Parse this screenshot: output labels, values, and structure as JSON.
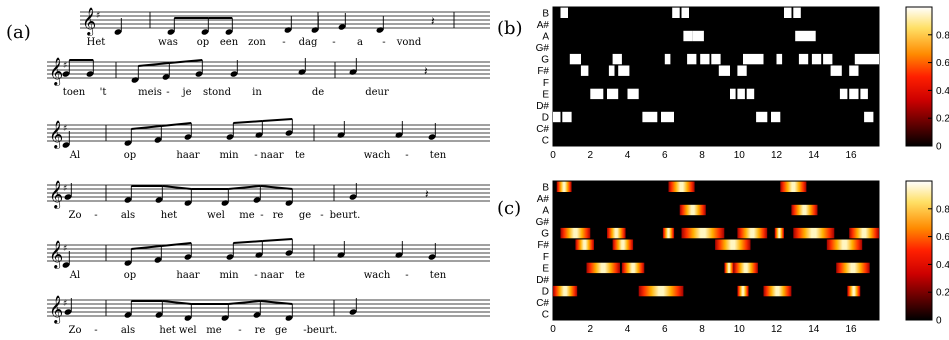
{
  "panel_labels": {
    "a": "(a)",
    "b": "(b)",
    "c": "(c)"
  },
  "sheet_music": {
    "staves": [
      {
        "syllables": [
          "Het",
          "was",
          "op",
          "een",
          "zon",
          "-",
          "dag",
          "-",
          "a",
          "-",
          "vond"
        ]
      },
      {
        "syllables": [
          "toen",
          "'t",
          "meis",
          "-",
          "je",
          "stond",
          "in",
          "de",
          "deur"
        ]
      },
      {
        "syllables": [
          "Al",
          "op",
          "haar",
          "min",
          "-",
          "naar",
          "te",
          "wach",
          "-",
          "ten"
        ]
      },
      {
        "syllables": [
          "Zo",
          "-",
          "als",
          "het",
          "wel",
          "me",
          "-",
          "re",
          "ge",
          "-",
          "beurt."
        ]
      },
      {
        "syllables": [
          "Al",
          "op",
          "haar",
          "min",
          "-",
          "naar",
          "te",
          "wach",
          "-",
          "ten"
        ]
      },
      {
        "syllables": [
          "Zo",
          "-",
          "als",
          "het wel",
          "me",
          "-",
          "re",
          "ge",
          "-",
          "beurt."
        ]
      }
    ]
  },
  "chart_data": [
    {
      "type": "heatmap",
      "panel": "(b)",
      "y_categories": [
        "B",
        "A#",
        "A",
        "G#",
        "G",
        "F#",
        "F",
        "E",
        "D#",
        "D",
        "C#",
        "C"
      ],
      "x_ticks": [
        "0",
        "2",
        "4",
        "6",
        "8",
        "10",
        "12",
        "14",
        "16"
      ],
      "xlim": [
        0,
        17.5
      ],
      "colorbar": {
        "min": 0,
        "max": 1,
        "ticks": [
          "0",
          "0.2",
          "0.4",
          "0.6",
          "0.8"
        ],
        "colormap": "hot"
      },
      "cells": [
        {
          "note": "B",
          "start": 0.4,
          "end": 0.8,
          "value": 1
        },
        {
          "note": "B",
          "start": 6.4,
          "end": 6.8,
          "value": 1
        },
        {
          "note": "B",
          "start": 6.9,
          "end": 7.3,
          "value": 1
        },
        {
          "note": "B",
          "start": 12.4,
          "end": 12.8,
          "value": 1
        },
        {
          "note": "B",
          "start": 12.9,
          "end": 13.3,
          "value": 1
        },
        {
          "note": "A",
          "start": 7.0,
          "end": 7.5,
          "value": 1
        },
        {
          "note": "A",
          "start": 7.5,
          "end": 8.1,
          "value": 1
        },
        {
          "note": "A",
          "start": 13.0,
          "end": 13.5,
          "value": 1
        },
        {
          "note": "A",
          "start": 13.5,
          "end": 14.1,
          "value": 1
        },
        {
          "note": "G",
          "start": 0.9,
          "end": 1.5,
          "value": 1
        },
        {
          "note": "G",
          "start": 3.2,
          "end": 3.7,
          "value": 1
        },
        {
          "note": "G",
          "start": 6.0,
          "end": 6.3,
          "value": 1
        },
        {
          "note": "G",
          "start": 7.2,
          "end": 7.7,
          "value": 1
        },
        {
          "note": "G",
          "start": 7.9,
          "end": 8.4,
          "value": 1
        },
        {
          "note": "G",
          "start": 8.5,
          "end": 9.0,
          "value": 1
        },
        {
          "note": "G",
          "start": 10.2,
          "end": 11.3,
          "value": 1
        },
        {
          "note": "G",
          "start": 12.0,
          "end": 12.3,
          "value": 1
        },
        {
          "note": "G",
          "start": 13.2,
          "end": 13.7,
          "value": 1
        },
        {
          "note": "G",
          "start": 13.9,
          "end": 14.4,
          "value": 1
        },
        {
          "note": "G",
          "start": 14.5,
          "end": 15.0,
          "value": 1
        },
        {
          "note": "G",
          "start": 16.2,
          "end": 17.5,
          "value": 1
        },
        {
          "note": "F#",
          "start": 1.5,
          "end": 1.9,
          "value": 1
        },
        {
          "note": "F#",
          "start": 3.0,
          "end": 3.3,
          "value": 1
        },
        {
          "note": "F#",
          "start": 3.5,
          "end": 4.1,
          "value": 1
        },
        {
          "note": "F#",
          "start": 8.9,
          "end": 9.5,
          "value": 1
        },
        {
          "note": "F#",
          "start": 9.9,
          "end": 10.4,
          "value": 1
        },
        {
          "note": "F#",
          "start": 14.9,
          "end": 15.5,
          "value": 1
        },
        {
          "note": "F#",
          "start": 15.9,
          "end": 16.4,
          "value": 1
        },
        {
          "note": "E",
          "start": 2.0,
          "end": 2.7,
          "value": 1
        },
        {
          "note": "E",
          "start": 2.9,
          "end": 3.5,
          "value": 1
        },
        {
          "note": "E",
          "start": 4.0,
          "end": 4.6,
          "value": 1
        },
        {
          "note": "E",
          "start": 9.5,
          "end": 9.8,
          "value": 1
        },
        {
          "note": "E",
          "start": 9.9,
          "end": 10.3,
          "value": 1
        },
        {
          "note": "E",
          "start": 10.4,
          "end": 10.8,
          "value": 1
        },
        {
          "note": "E",
          "start": 15.4,
          "end": 15.8,
          "value": 1
        },
        {
          "note": "E",
          "start": 15.9,
          "end": 16.4,
          "value": 1
        },
        {
          "note": "E",
          "start": 16.5,
          "end": 16.9,
          "value": 1
        },
        {
          "note": "D",
          "start": 0.0,
          "end": 0.4,
          "value": 1
        },
        {
          "note": "D",
          "start": 0.5,
          "end": 1.0,
          "value": 1
        },
        {
          "note": "D",
          "start": 4.8,
          "end": 5.6,
          "value": 1
        },
        {
          "note": "D",
          "start": 5.8,
          "end": 6.5,
          "value": 1
        },
        {
          "note": "D",
          "start": 10.9,
          "end": 11.5,
          "value": 1
        },
        {
          "note": "D",
          "start": 11.7,
          "end": 12.2,
          "value": 1
        },
        {
          "note": "D",
          "start": 16.7,
          "end": 17.2,
          "value": 1
        }
      ]
    },
    {
      "type": "heatmap",
      "panel": "(c)",
      "y_categories": [
        "B",
        "A#",
        "A",
        "G#",
        "G",
        "F#",
        "F",
        "E",
        "D#",
        "D",
        "C#",
        "C"
      ],
      "x_ticks": [
        "0",
        "2",
        "4",
        "6",
        "8",
        "10",
        "12",
        "14",
        "16"
      ],
      "xlim": [
        0,
        17.5
      ],
      "colorbar": {
        "min": 0,
        "max": 1,
        "ticks": [
          "0",
          "0.2",
          "0.4",
          "0.6",
          "0.8"
        ],
        "colormap": "hot"
      },
      "cells": [
        {
          "note": "B",
          "start": 0.2,
          "end": 1.0,
          "value": 1
        },
        {
          "note": "B",
          "start": 6.2,
          "end": 7.6,
          "value": 1
        },
        {
          "note": "B",
          "start": 12.2,
          "end": 13.6,
          "value": 1
        },
        {
          "note": "A",
          "start": 6.8,
          "end": 8.2,
          "value": 1
        },
        {
          "note": "A",
          "start": 12.8,
          "end": 14.2,
          "value": 1
        },
        {
          "note": "G",
          "start": 0.4,
          "end": 2.0,
          "value": 1
        },
        {
          "note": "G",
          "start": 2.9,
          "end": 3.9,
          "value": 1
        },
        {
          "note": "G",
          "start": 5.9,
          "end": 6.5,
          "value": 1
        },
        {
          "note": "G",
          "start": 6.9,
          "end": 9.2,
          "value": 1
        },
        {
          "note": "G",
          "start": 9.9,
          "end": 11.5,
          "value": 1
        },
        {
          "note": "G",
          "start": 11.9,
          "end": 12.4,
          "value": 1
        },
        {
          "note": "G",
          "start": 12.9,
          "end": 15.1,
          "value": 1
        },
        {
          "note": "G",
          "start": 15.9,
          "end": 17.5,
          "value": 1
        },
        {
          "note": "F#",
          "start": 1.2,
          "end": 2.2,
          "value": 1
        },
        {
          "note": "F#",
          "start": 3.2,
          "end": 4.3,
          "value": 1
        },
        {
          "note": "F#",
          "start": 8.7,
          "end": 10.6,
          "value": 1
        },
        {
          "note": "F#",
          "start": 14.7,
          "end": 16.6,
          "value": 1
        },
        {
          "note": "E",
          "start": 1.8,
          "end": 3.6,
          "value": 1
        },
        {
          "note": "E",
          "start": 3.7,
          "end": 4.9,
          "value": 1
        },
        {
          "note": "E",
          "start": 9.2,
          "end": 9.7,
          "value": 1
        },
        {
          "note": "E",
          "start": 9.7,
          "end": 11.0,
          "value": 1
        },
        {
          "note": "E",
          "start": 15.2,
          "end": 17.0,
          "value": 1
        },
        {
          "note": "D",
          "start": 0.0,
          "end": 1.3,
          "value": 1
        },
        {
          "note": "D",
          "start": 4.6,
          "end": 7.0,
          "value": 1
        },
        {
          "note": "D",
          "start": 9.9,
          "end": 10.5,
          "value": 1
        },
        {
          "note": "D",
          "start": 11.3,
          "end": 12.8,
          "value": 1
        },
        {
          "note": "D",
          "start": 15.8,
          "end": 16.5,
          "value": 1
        }
      ]
    }
  ]
}
